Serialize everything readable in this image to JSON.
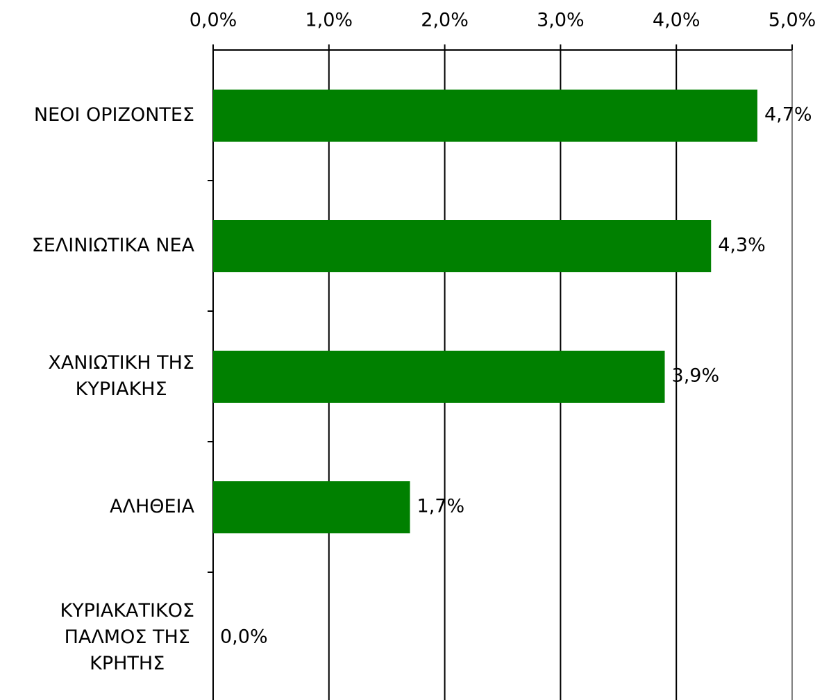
{
  "chart_data": {
    "type": "bar",
    "orientation": "horizontal",
    "categories": [
      "ΝΕΟΙ ΟΡΙΖΟΝΤΕΣ",
      "ΣΕΛΙΝΙΩΤΙΚΑ ΝΕΑ",
      "ΧΑΝΙΩΤΙΚΗ ΤΗΣ\nΚΥΡΙΑΚΗΣ",
      "ΑΛΗΘΕΙΑ",
      "ΚΥΡΙΑΚΑΤΙΚΟΣ\nΠΑΛΜΟΣ ΤΗΣ\nΚΡΗΤΗΣ"
    ],
    "values": [
      4.7,
      4.3,
      3.9,
      1.7,
      0.0
    ],
    "value_labels": [
      "4,7%",
      "4,3%",
      "3,9%",
      "1,7%",
      "0,0%"
    ],
    "color": "#008000",
    "xlim": [
      0,
      5
    ],
    "xticks": [
      {
        "value": 0,
        "label": "0,0%"
      },
      {
        "value": 1,
        "label": "1,0%"
      },
      {
        "value": 2,
        "label": "2,0%"
      },
      {
        "value": 3,
        "label": "3,0%"
      },
      {
        "value": 4,
        "label": "4,0%"
      },
      {
        "value": 5,
        "label": "5,0%"
      }
    ],
    "grid": true
  }
}
